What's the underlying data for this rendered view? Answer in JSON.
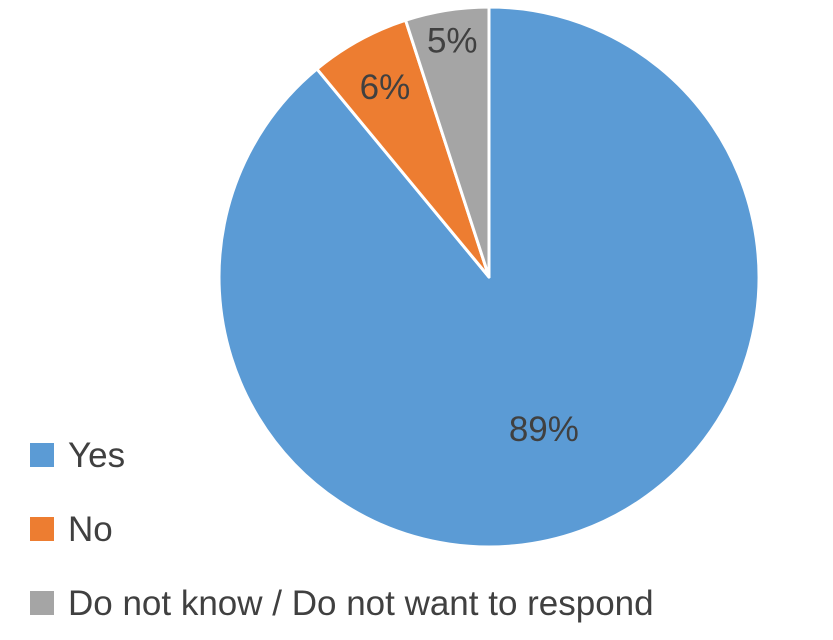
{
  "chart_data": {
    "type": "pie",
    "categories": [
      "Yes",
      "No",
      "Do not know / Do not want to respond"
    ],
    "values": [
      89,
      6,
      5
    ],
    "value_labels": [
      "89%",
      "6%",
      "5%"
    ],
    "colors": [
      "#5B9BD5",
      "#ED7D31",
      "#A5A5A5"
    ],
    "title": "",
    "legend_position": "left"
  },
  "legend": {
    "items": [
      {
        "label": "Yes",
        "color": "#5B9BD5"
      },
      {
        "label": "No",
        "color": "#ED7D31"
      },
      {
        "label": "Do not know / Do not want to respond",
        "color": "#A5A5A5"
      }
    ]
  }
}
